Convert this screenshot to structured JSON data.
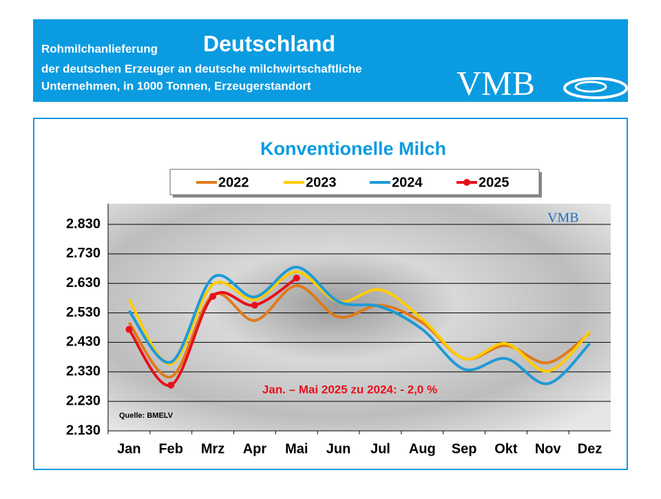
{
  "header": {
    "title_prefix": "Rohmilchanlieferung",
    "title": "Deutschland",
    "subtitle_lines": [
      "der deutschen Erzeuger an deutsche milchwirtschaftliche",
      "Unternehmen, in 1000 Tonnen, Erzeugerstandort"
    ],
    "logo": "VMB"
  },
  "chart_data": {
    "type": "line",
    "title": "Konventionelle Milch",
    "categories": [
      "Jan",
      "Feb",
      "Mrz",
      "Apr",
      "Mai",
      "Jun",
      "Jul",
      "Aug",
      "Sep",
      "Okt",
      "Nov",
      "Dez"
    ],
    "series": [
      {
        "name": "2022",
        "color": "#e07a1a",
        "marker": false,
        "values": [
          2497,
          2313,
          2591,
          2504,
          2622,
          2516,
          2556,
          2497,
          2375,
          2419,
          2361,
          2462
        ]
      },
      {
        "name": "2023",
        "color": "#ffcc00",
        "marker": false,
        "values": [
          2575,
          2356,
          2626,
          2575,
          2669,
          2568,
          2608,
          2509,
          2375,
          2426,
          2332,
          2466
        ]
      },
      {
        "name": "2024",
        "color": "#1e9ad6",
        "marker": false,
        "values": [
          2537,
          2363,
          2650,
          2584,
          2685,
          2568,
          2551,
          2474,
          2339,
          2375,
          2290,
          2426
        ]
      },
      {
        "name": "2025",
        "color": "#e8101a",
        "marker": true,
        "values": [
          2474,
          2285,
          2586,
          2556,
          2648,
          null,
          null,
          null,
          null,
          null,
          null,
          null
        ]
      }
    ],
    "ylim": [
      2130,
      2900
    ],
    "yticks": [
      {
        "value": 2130,
        "label": "2.130"
      },
      {
        "value": 2230,
        "label": "2.230"
      },
      {
        "value": 2330,
        "label": "2.330"
      },
      {
        "value": 2430,
        "label": "2.430"
      },
      {
        "value": 2530,
        "label": "2.530"
      },
      {
        "value": 2630,
        "label": "2.630"
      },
      {
        "value": 2730,
        "label": "2.730"
      },
      {
        "value": 2830,
        "label": "2.830"
      }
    ],
    "grid": true,
    "annotation": "Jan. – Mai 2025 zu 2024: - 2,0 %",
    "source": "Quelle:  BMELV",
    "logo": "VMB"
  }
}
